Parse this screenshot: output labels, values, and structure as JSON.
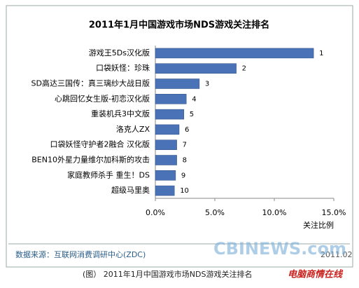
{
  "chart_data": {
    "type": "bar",
    "orientation": "horizontal",
    "title": "2011年1月中国游戏市场NDS游戏关注排名",
    "categories": [
      "游戏王5Ds汉化版",
      "口袋妖怪：珍珠",
      "SD高达三国传：真三璃纱大战日版",
      "心跳回忆女生版-初恋汉化版",
      "重装机兵3中文版",
      "洛克人ZX",
      "口袋妖怪守护者2融合 汉化版",
      "BEN10外星力量维尔加科斯的攻击",
      "家庭教师杀手 重生！DS",
      "超级马里奥"
    ],
    "values": [
      13.3,
      6.8,
      3.7,
      2.6,
      2.4,
      2.0,
      1.8,
      1.8,
      1.7,
      1.6
    ],
    "ranks": [
      1,
      2,
      3,
      4,
      5,
      6,
      7,
      8,
      9,
      10
    ],
    "color": "#4a72b6",
    "xlim": [
      0,
      15
    ],
    "xticks": [
      {
        "value": 0,
        "label": "0.0%"
      },
      {
        "value": 5,
        "label": "5.0%"
      },
      {
        "value": 10,
        "label": "10.0%"
      },
      {
        "value": 15,
        "label": "15.0%"
      }
    ],
    "x_label": "关注比例",
    "source": "数据来源：互联网消费调研中心(ZDC)",
    "date": "2011.02",
    "caption": "(图） 2011年1月中国游戏市场NDS游戏关注排名",
    "watermark": "CBINEWS.com",
    "watermark_cn": "电脑商情在线"
  }
}
